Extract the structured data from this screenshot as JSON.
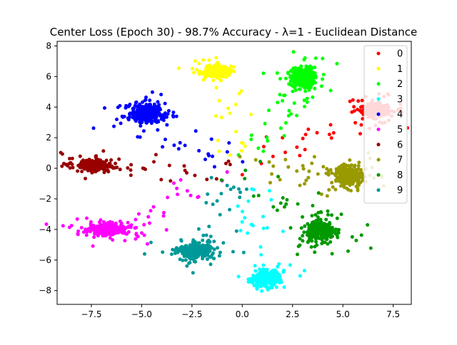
{
  "chart_data": {
    "type": "scatter",
    "title": "Center Loss (Epoch 30) - 98.7% Accuracy - λ=1 - Euclidean Distance",
    "xlabel": "",
    "ylabel": "",
    "xlim": [
      -9.2,
      8.4
    ],
    "ylim": [
      -8.9,
      8.3
    ],
    "xticks": [
      -7.5,
      -5.0,
      -2.5,
      0.0,
      2.5,
      5.0,
      7.5
    ],
    "yticks": [
      -8,
      -6,
      -4,
      -2,
      0,
      2,
      4,
      6,
      8
    ],
    "xtick_labels": [
      "−7.5",
      "−5.0",
      "−2.5",
      "0.0",
      "2.5",
      "5.0",
      "7.5"
    ],
    "ytick_labels": [
      "−8",
      "−6",
      "−4",
      "−2",
      "0",
      "2",
      "4",
      "6",
      "8"
    ],
    "grid": false,
    "legend_position": "top-right",
    "series": [
      {
        "name": "0",
        "color": "#ff0000",
        "center": [
          6.6,
          3.8
        ],
        "spread": [
          0.55,
          0.35
        ]
      },
      {
        "name": "1",
        "color": "#ffff00",
        "center": [
          -1.3,
          6.4
        ],
        "spread": [
          0.5,
          0.3
        ]
      },
      {
        "name": "2",
        "color": "#00ff00",
        "center": [
          3.0,
          5.9
        ],
        "spread": [
          0.5,
          0.6
        ]
      },
      {
        "name": "3",
        "color": "#00ffff",
        "center": [
          1.2,
          -7.2
        ],
        "spread": [
          0.5,
          0.4
        ]
      },
      {
        "name": "4",
        "color": "#0000ff",
        "center": [
          -4.8,
          3.6
        ],
        "spread": [
          0.6,
          0.5
        ]
      },
      {
        "name": "5",
        "color": "#ff00ff",
        "center": [
          -6.6,
          -4.0
        ],
        "spread": [
          0.8,
          0.3
        ]
      },
      {
        "name": "6",
        "color": "#990000",
        "center": [
          -7.4,
          0.2
        ],
        "spread": [
          0.6,
          0.3
        ]
      },
      {
        "name": "7",
        "color": "#999900",
        "center": [
          5.3,
          -0.5
        ],
        "spread": [
          0.6,
          0.5
        ]
      },
      {
        "name": "8",
        "color": "#009900",
        "center": [
          3.9,
          -4.1
        ],
        "spread": [
          0.6,
          0.5
        ]
      },
      {
        "name": "9",
        "color": "#009999",
        "center": [
          -2.3,
          -5.4
        ],
        "spread": [
          0.7,
          0.4
        ]
      }
    ]
  }
}
